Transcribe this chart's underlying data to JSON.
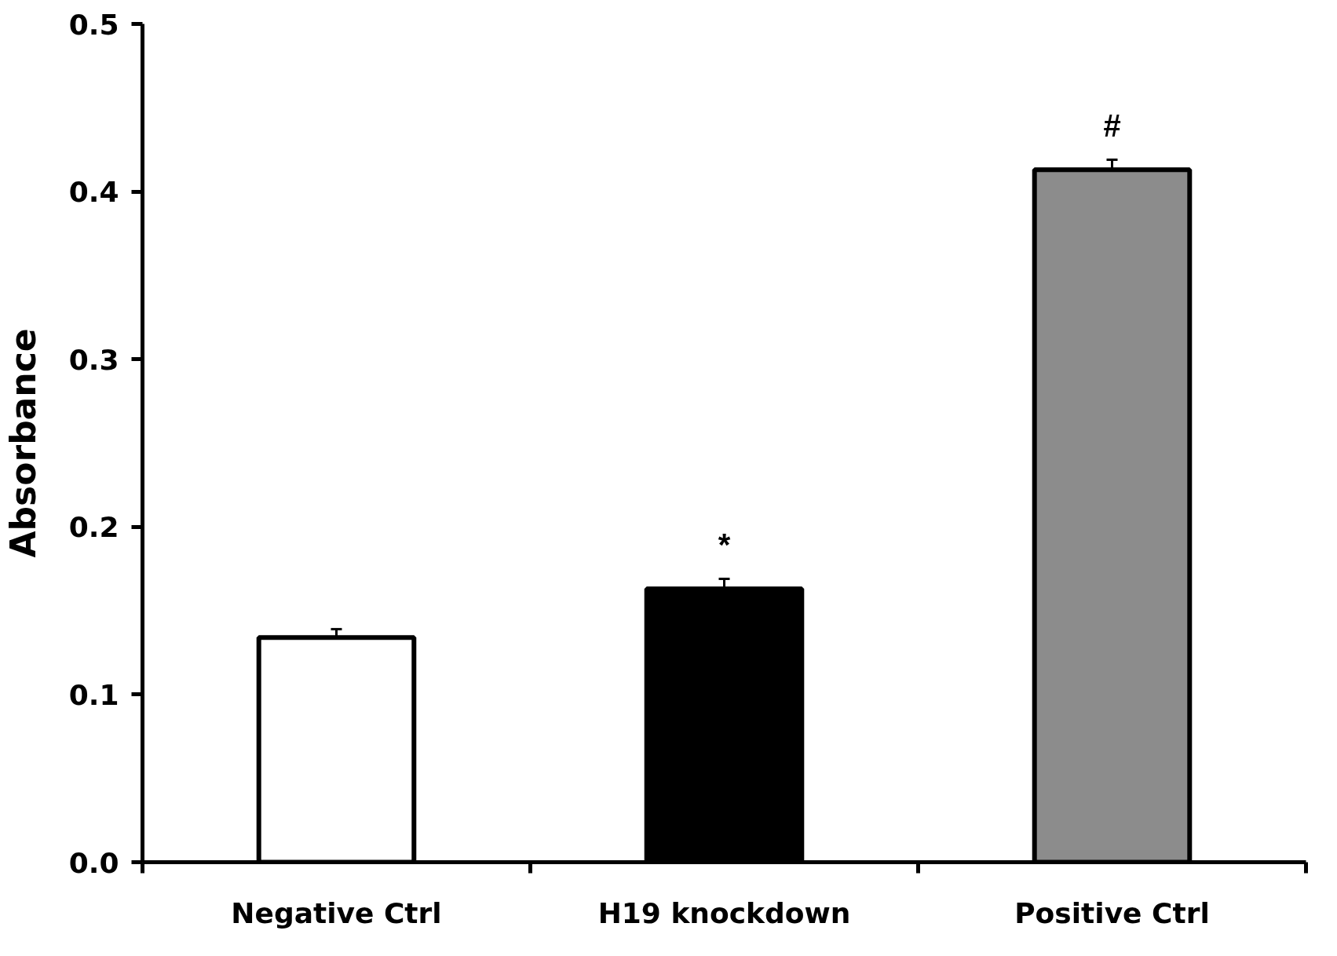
{
  "chart_data": {
    "type": "bar",
    "ylabel": "Absorbance",
    "categories": [
      "Negative Ctrl",
      "H19 knockdown",
      "Positive Ctrl"
    ],
    "values": [
      0.134,
      0.163,
      0.413
    ],
    "errors": [
      0.005,
      0.006,
      0.006
    ],
    "colors": [
      "#ffffff",
      "#000000",
      "#8c8c8c"
    ],
    "ylim": [
      0,
      0.5
    ],
    "yticks": [
      {
        "value": 0,
        "label": "0.0"
      },
      0.1,
      0.2,
      0.3,
      0.4,
      0.5
    ],
    "annotations": [
      "*",
      "#"
    ],
    "grid": false
  }
}
